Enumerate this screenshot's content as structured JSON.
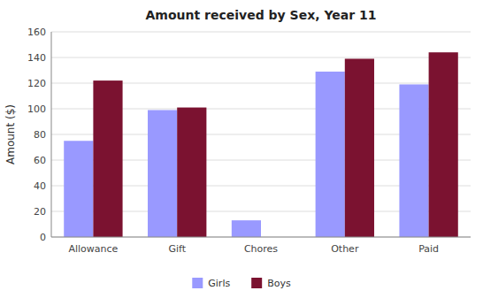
{
  "chart_data": {
    "type": "bar",
    "title": "Amount received by Sex, Year 11",
    "categories": [
      "Allowance",
      "Gift",
      "Chores",
      "Other",
      "Paid"
    ],
    "series": [
      {
        "name": "Girls",
        "color": "#9999FF",
        "values": [
          75,
          99,
          13,
          129,
          119
        ]
      },
      {
        "name": "Boys",
        "color": "#7B1230",
        "values": [
          122,
          101,
          0,
          139,
          144
        ]
      }
    ],
    "ylabel": "Amount ($)",
    "ylim": [
      0,
      160
    ],
    "yticks": [
      0,
      20,
      40,
      60,
      80,
      100,
      120,
      140,
      160
    ],
    "grid": true,
    "legend": "bottom"
  }
}
